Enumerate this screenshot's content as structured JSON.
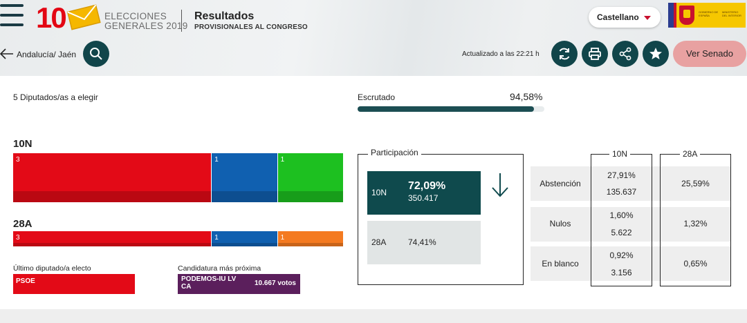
{
  "header": {
    "logo_number": "10",
    "logo_line1": "ELECCIONES",
    "logo_line2": "GENERALES 2019",
    "title": "Resultados",
    "subtitle": "PROVISIONALES AL CONGRESO",
    "language": "Castellano",
    "gov_text1": "GOBIERNO DE ESPAÑA",
    "gov_text2": "MINISTERIO DEL INTERIOR"
  },
  "toolbar": {
    "breadcrumb": "Andalucía/ Jaén",
    "updated": "Actualizado a las 22:21 h",
    "senado_label": "Ver Senado"
  },
  "seats": {
    "title": "5 Diputados/as a elegir",
    "rows": [
      {
        "label": "10N",
        "segments": [
          {
            "value": 3,
            "color": "#e30a17"
          },
          {
            "value": 1,
            "color": "#1060b0"
          },
          {
            "value": 1,
            "color": "#1dc020"
          }
        ]
      },
      {
        "label": "28A",
        "segments": [
          {
            "value": 3,
            "color": "#e30a17"
          },
          {
            "value": 1,
            "color": "#1060b0"
          },
          {
            "value": 1,
            "color": "#f47a20"
          }
        ]
      }
    ]
  },
  "escrutado": {
    "label": "Escrutado",
    "value": "94,58%",
    "fraction": 0.9458
  },
  "ultimo": {
    "label": "Último diputado/a electo",
    "party": "PSOE"
  },
  "candidatura": {
    "label": "Candidatura más próxima",
    "party": "PODEMOS-IU LV CA",
    "votes": "10.667 votos"
  },
  "participacion": {
    "label": "Participación",
    "current": {
      "year": "10N",
      "pct": "72,09%",
      "abs": "350.417"
    },
    "previous": {
      "year": "28A",
      "pct": "74,41%"
    }
  },
  "table": {
    "col_10n": "10N",
    "col_28a": "28A",
    "rows": [
      {
        "label": "Abstención",
        "pct_10n": "27,91%",
        "abs_10n": "135.637",
        "pct_28a": "25,59%"
      },
      {
        "label": "Nulos",
        "pct_10n": "1,60%",
        "abs_10n": "5.622",
        "pct_28a": "1,32%"
      },
      {
        "label": "En blanco",
        "pct_10n": "0,92%",
        "abs_10n": "3.156",
        "pct_28a": "0,65%"
      }
    ]
  }
}
